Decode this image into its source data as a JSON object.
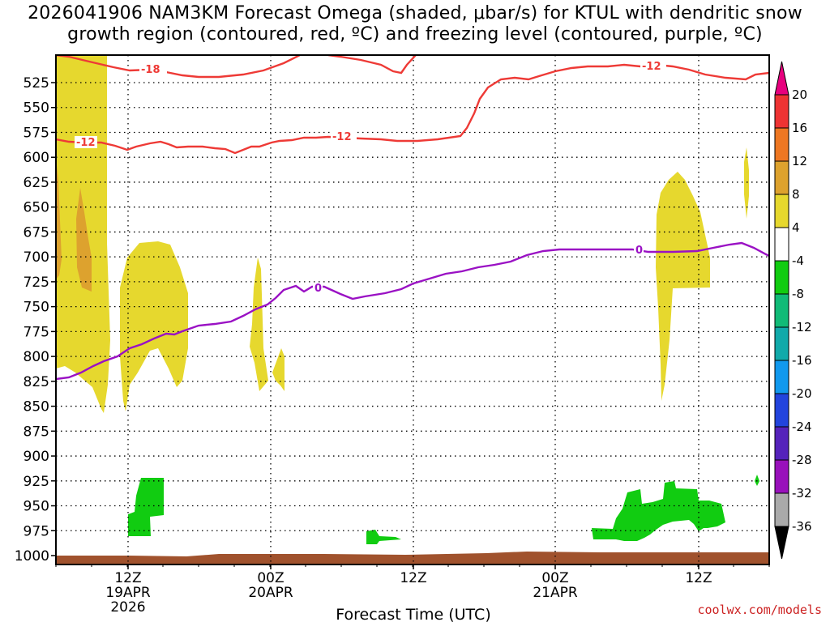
{
  "title": {
    "line1": "2026041906 NAM3KM Forecast Omega (shaded, μbar/s) for KTUL with dendritic snow",
    "line2": "growth region (contoured, red, ºC) and freezing level (contoured, purple, ºC)"
  },
  "credit": "coolwx.com/models",
  "colors": {
    "omega_pos_4_8": "#e6d82e",
    "omega_pos_8_12": "#dda22e",
    "omega_neg_4_8": "#11cc11",
    "dgz_contour": "#ee3a36",
    "freezing_contour": "#9a11c4",
    "terrain": "#a0522d"
  },
  "chart_data": {
    "type": "heatmap",
    "subtitle": "time-height cross section",
    "xlabel": "Forecast Time (UTC)",
    "ylabel": "",
    "x_axis": {
      "start": "2026-04-19 06Z",
      "end": "2026-04-21 18Z",
      "ticks": [
        {
          "time": "2026-04-19 12Z",
          "labels": [
            "12Z",
            "19APR",
            "2026"
          ]
        },
        {
          "time": "2026-04-20 00Z",
          "labels": [
            "00Z",
            "20APR"
          ]
        },
        {
          "time": "2026-04-20 12Z",
          "labels": [
            "12Z"
          ]
        },
        {
          "time": "2026-04-21 00Z",
          "labels": [
            "00Z",
            "21APR"
          ]
        },
        {
          "time": "2026-04-21 12Z",
          "labels": [
            "12Z"
          ]
        }
      ]
    },
    "y_axis": {
      "units": "hPa",
      "range": [
        1000,
        500
      ],
      "ticks": [
        "525",
        "550",
        "575",
        "600",
        "625",
        "650",
        "675",
        "700",
        "725",
        "750",
        "775",
        "800",
        "825",
        "850",
        "875",
        "900",
        "925",
        "950",
        "975",
        "1000"
      ]
    },
    "grid": true,
    "colorbar": {
      "labels": [
        "20",
        "16",
        "12",
        "8",
        "4",
        "-4",
        "-8",
        "-12",
        "-16",
        "-20",
        "-24",
        "-28",
        "-32",
        "-36"
      ],
      "colors": [
        "#e7007e",
        "#ee3333",
        "#ee7722",
        "#dda22e",
        "#e6d82e",
        "#ffffff",
        "#11cc11",
        "#11bb77",
        "#11aaaa",
        "#1199ee",
        "#2244dd",
        "#5522bb",
        "#9911bb",
        "#aaaaaa",
        "#000000"
      ]
    },
    "contours": [
      {
        "field": "temperature",
        "color": "red",
        "labels": [
          "-18",
          "-12",
          "-12",
          "-12"
        ]
      },
      {
        "field": "freezing level",
        "color": "purple",
        "labels": [
          "0",
          "0"
        ]
      }
    ]
  }
}
